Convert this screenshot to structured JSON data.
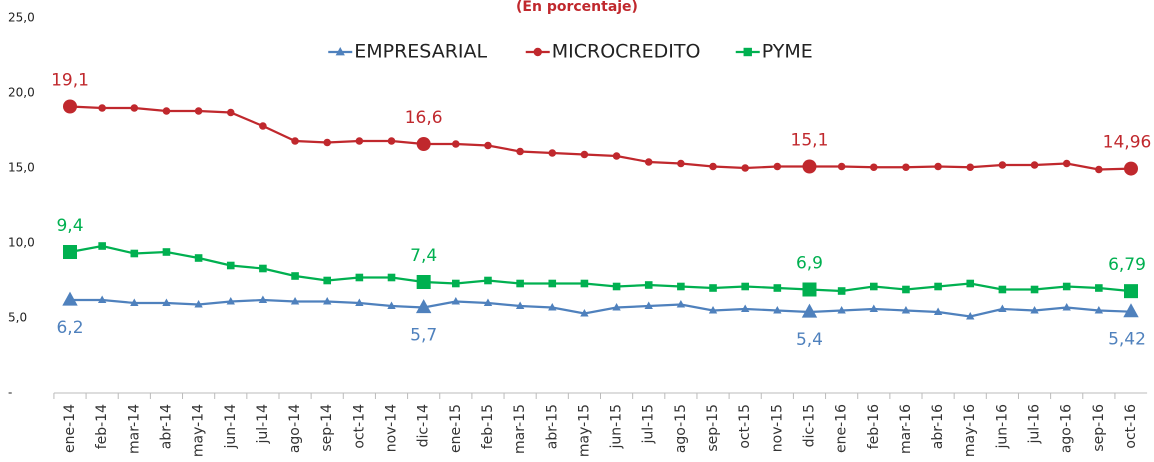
{
  "chart_data": {
    "type": "line",
    "subtitle": "(En porcentaje)",
    "categories": [
      "ene-14",
      "feb-14",
      "mar-14",
      "abr-14",
      "may-14",
      "jun-14",
      "jul-14",
      "ago-14",
      "sep-14",
      "oct-14",
      "nov-14",
      "dic-14",
      "ene-15",
      "feb-15",
      "mar-15",
      "abr-15",
      "may-15",
      "jun-15",
      "jul-15",
      "ago-15",
      "sep-15",
      "oct-15",
      "nov-15",
      "dic-15",
      "ene-16",
      "feb-16",
      "mar-16",
      "abr-16",
      "may-16",
      "jun-16",
      "jul-16",
      "ago-16",
      "sep-16",
      "oct-16"
    ],
    "series": [
      {
        "name": "EMPRESARIAL",
        "color": "#4f81bd",
        "marker": "triangle",
        "values": [
          6.2,
          6.2,
          6.0,
          6.0,
          5.9,
          6.1,
          6.2,
          6.1,
          6.1,
          6.0,
          5.8,
          5.7,
          6.1,
          6.0,
          5.8,
          5.7,
          5.3,
          5.7,
          5.8,
          5.9,
          5.5,
          5.6,
          5.5,
          5.4,
          5.5,
          5.6,
          5.5,
          5.4,
          5.1,
          5.6,
          5.5,
          5.7,
          5.5,
          5.42
        ],
        "value_labels": [
          "6,2",
          null,
          null,
          null,
          null,
          null,
          null,
          null,
          null,
          null,
          null,
          "5,7",
          null,
          null,
          null,
          null,
          null,
          null,
          null,
          null,
          null,
          null,
          null,
          "5,4",
          null,
          null,
          null,
          null,
          null,
          null,
          null,
          null,
          null,
          "5,42"
        ]
      },
      {
        "name": "MICROCREDITO",
        "color": "#c0282d",
        "marker": "circle",
        "values": [
          19.1,
          19.0,
          19.0,
          18.8,
          18.8,
          18.7,
          17.8,
          16.8,
          16.7,
          16.8,
          16.8,
          16.6,
          16.6,
          16.5,
          16.1,
          16.0,
          15.9,
          15.8,
          15.4,
          15.3,
          15.1,
          15.0,
          15.1,
          15.1,
          15.1,
          15.05,
          15.05,
          15.1,
          15.05,
          15.2,
          15.2,
          15.3,
          14.9,
          14.96
        ],
        "value_labels": [
          "19,1",
          null,
          null,
          null,
          null,
          null,
          null,
          null,
          null,
          null,
          null,
          "16,6",
          null,
          null,
          null,
          null,
          null,
          null,
          null,
          null,
          null,
          null,
          null,
          "15,1",
          null,
          null,
          null,
          null,
          null,
          null,
          null,
          null,
          null,
          "14,96"
        ]
      },
      {
        "name": "PYME",
        "color": "#00b050",
        "marker": "square",
        "values": [
          9.4,
          9.8,
          9.3,
          9.4,
          9.0,
          8.5,
          8.3,
          7.8,
          7.5,
          7.7,
          7.7,
          7.4,
          7.3,
          7.5,
          7.3,
          7.3,
          7.3,
          7.1,
          7.2,
          7.1,
          7.0,
          7.1,
          7.0,
          6.9,
          6.8,
          7.1,
          6.9,
          7.1,
          7.3,
          6.9,
          6.9,
          7.1,
          7.0,
          6.79
        ],
        "value_labels": [
          "9,4",
          null,
          null,
          null,
          null,
          null,
          null,
          null,
          null,
          null,
          null,
          "7,4",
          null,
          null,
          null,
          null,
          null,
          null,
          null,
          null,
          null,
          null,
          null,
          "6,9",
          null,
          null,
          null,
          null,
          null,
          null,
          null,
          null,
          null,
          "6,79"
        ]
      }
    ],
    "ylim": [
      0,
      25
    ],
    "yticks": [
      {
        "value": 0,
        "label": "-"
      },
      {
        "value": 5,
        "label": "5,0"
      },
      {
        "value": 10,
        "label": "10,0"
      },
      {
        "value": 15,
        "label": "15,0"
      },
      {
        "value": 20,
        "label": "20,0"
      },
      {
        "value": 25,
        "label": "25,0"
      }
    ],
    "grid": false,
    "legend": "top"
  }
}
